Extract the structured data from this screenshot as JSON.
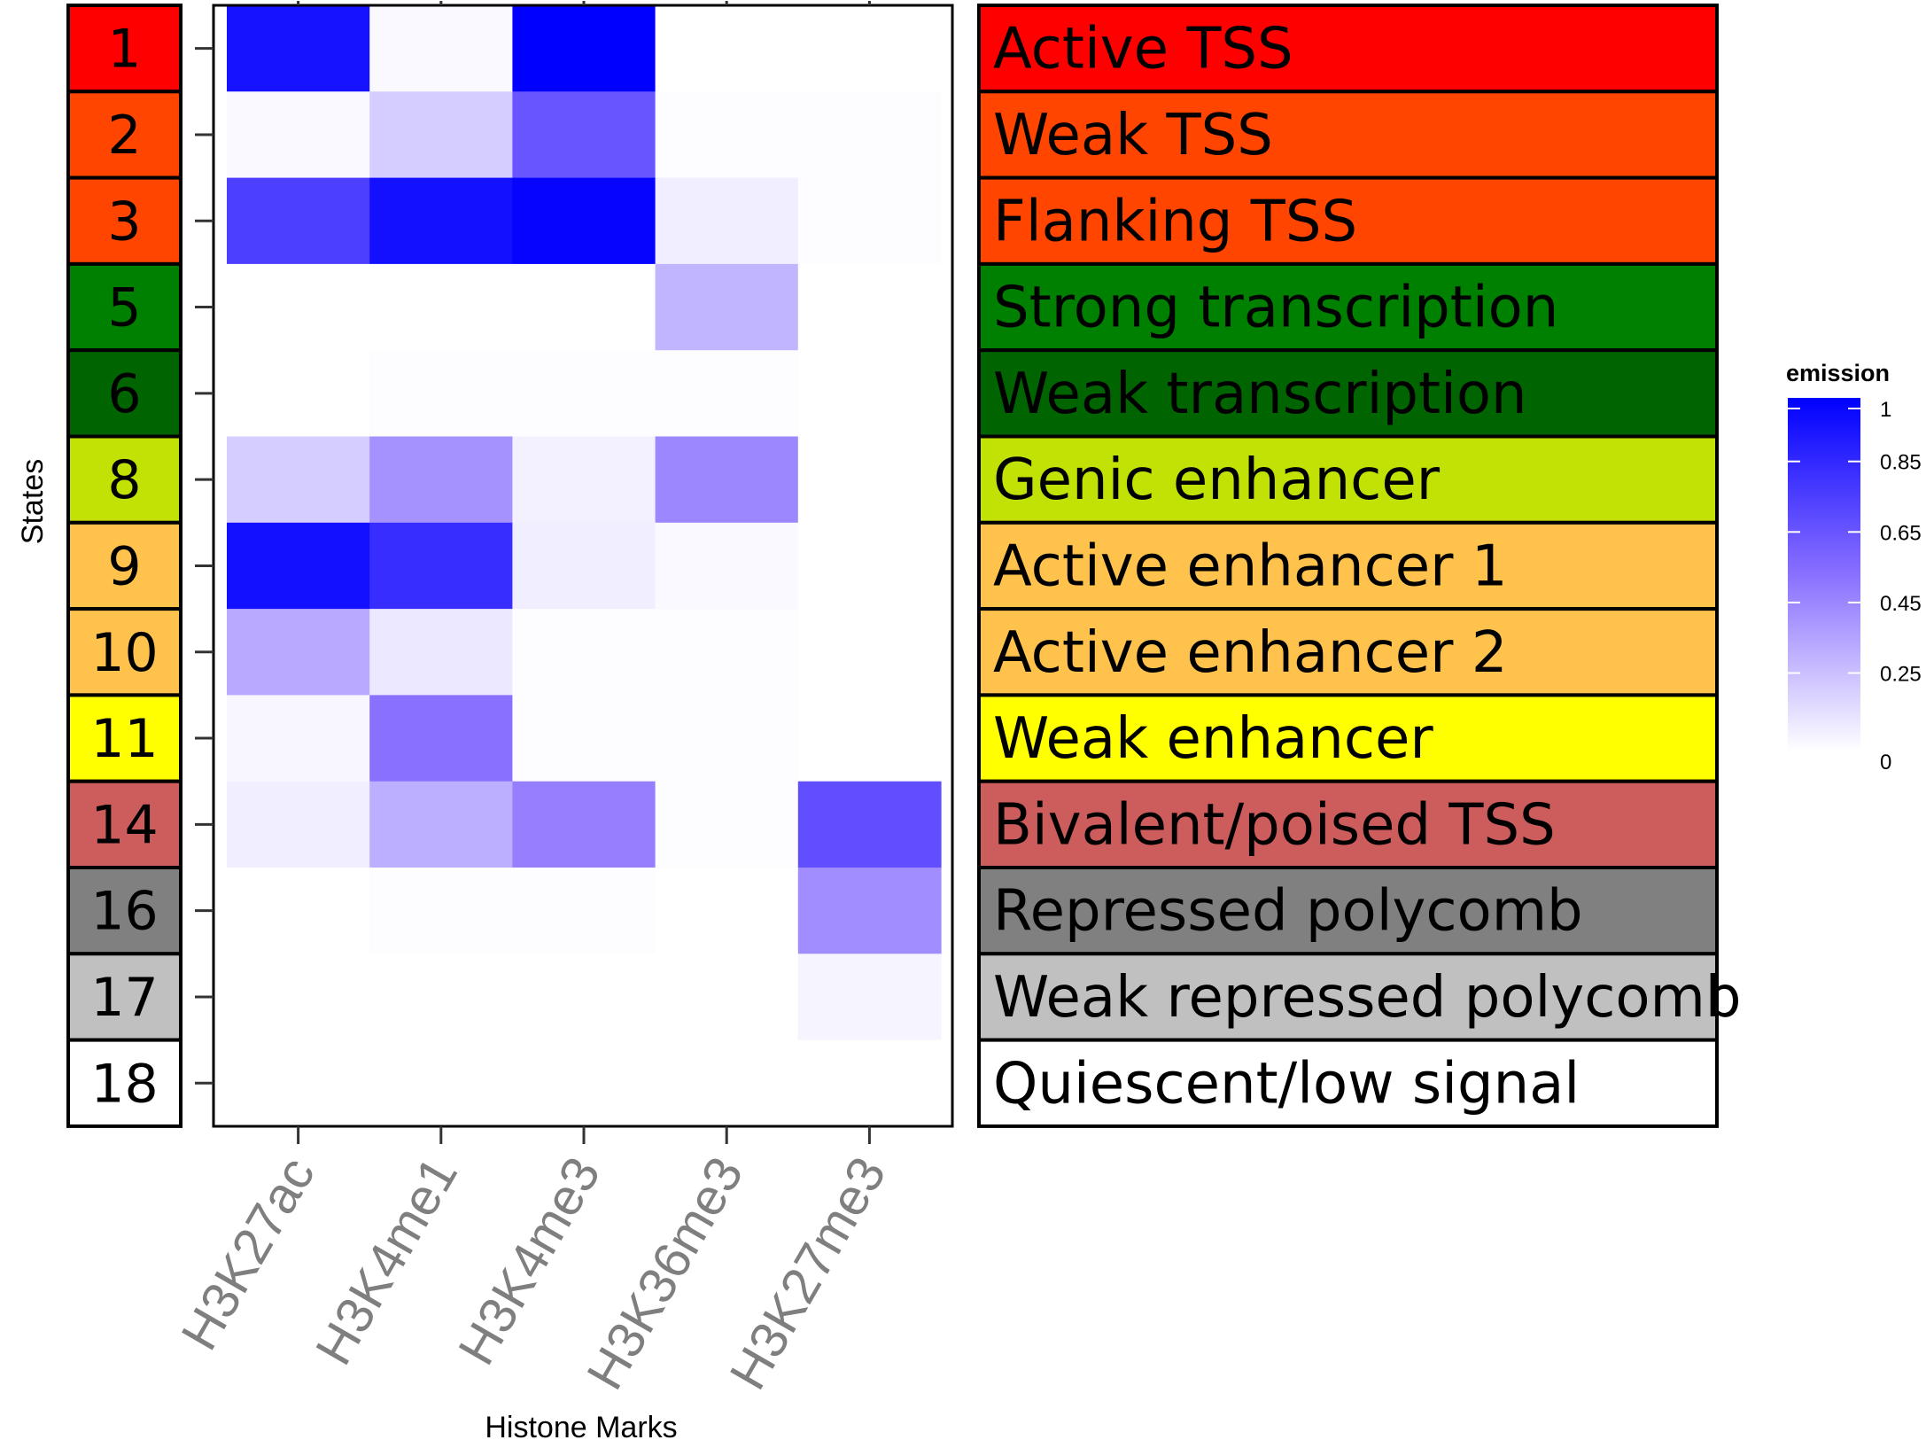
{
  "chart_data": {
    "type": "heatmap",
    "title": "",
    "xlabel": "Histone Marks",
    "ylabel": "States",
    "columns": [
      "H3K27ac",
      "H3K4me1",
      "H3K4me3",
      "H3K36me3",
      "H3K27me3"
    ],
    "rows": [
      {
        "state": "1",
        "label": "Active TSS",
        "color": "#ff0000",
        "text_color": "#000000",
        "values": [
          0.92,
          0.02,
          1.0,
          0.0,
          0.0
        ]
      },
      {
        "state": "2",
        "label": "Weak TSS",
        "color": "#ff4500",
        "text_color": "#000000",
        "values": [
          0.02,
          0.18,
          0.62,
          0.01,
          0.01
        ]
      },
      {
        "state": "3",
        "label": "Flanking TSS",
        "color": "#ff4500",
        "text_color": "#000000",
        "values": [
          0.72,
          0.93,
          0.98,
          0.06,
          0.01
        ]
      },
      {
        "state": "5",
        "label": "Strong transcription",
        "color": "#008000",
        "text_color": "#000000",
        "values": [
          0.0,
          0.0,
          0.0,
          0.26,
          0.0
        ]
      },
      {
        "state": "6",
        "label": "Weak transcription",
        "color": "#006400",
        "text_color": "#000000",
        "values": [
          0.0,
          0.01,
          0.01,
          0.01,
          0.0
        ]
      },
      {
        "state": "8",
        "label": "Genic enhancer",
        "color": "#c2e105",
        "text_color": "#000000",
        "values": [
          0.18,
          0.38,
          0.05,
          0.42,
          0.0
        ]
      },
      {
        "state": "9",
        "label": "Active enhancer 1",
        "color": "#ffc34d",
        "text_color": "#000000",
        "values": [
          0.93,
          0.8,
          0.06,
          0.02,
          0.0
        ]
      },
      {
        "state": "10",
        "label": "Active enhancer 2",
        "color": "#ffc34d",
        "text_color": "#000000",
        "values": [
          0.3,
          0.08,
          0.01,
          0.01,
          0.0
        ]
      },
      {
        "state": "11",
        "label": "Weak enhancer",
        "color": "#ffff00",
        "text_color": "#000000",
        "values": [
          0.03,
          0.5,
          0.01,
          0.01,
          0.0
        ]
      },
      {
        "state": "14",
        "label": "Bivalent/poised TSS",
        "color": "#cd5c5c",
        "text_color": "#000000",
        "values": [
          0.06,
          0.28,
          0.45,
          0.01,
          0.65
        ]
      },
      {
        "state": "16",
        "label": "Repressed polycomb",
        "color": "#808080",
        "text_color": "#000000",
        "values": [
          0.0,
          0.01,
          0.01,
          0.0,
          0.4
        ]
      },
      {
        "state": "17",
        "label": "Weak repressed polycomb",
        "color": "#c0c0c0",
        "text_color": "#000000",
        "values": [
          0.0,
          0.0,
          0.0,
          0.0,
          0.04
        ]
      },
      {
        "state": "18",
        "label": "Quiescent/low signal",
        "color": "#ffffff",
        "text_color": "#000000",
        "values": [
          0.0,
          0.0,
          0.0,
          0.0,
          0.0
        ]
      }
    ],
    "scale": {
      "title": "emission",
      "low_color": "#ffffff",
      "high_color": "#0000ff",
      "range": [
        0,
        1
      ],
      "ticks": [
        1,
        0.85,
        0.65,
        0.45,
        0.25,
        0
      ],
      "tick_labels": [
        "1",
        "0.85",
        "0.65",
        "0.45",
        "0.25",
        "0"
      ]
    }
  }
}
